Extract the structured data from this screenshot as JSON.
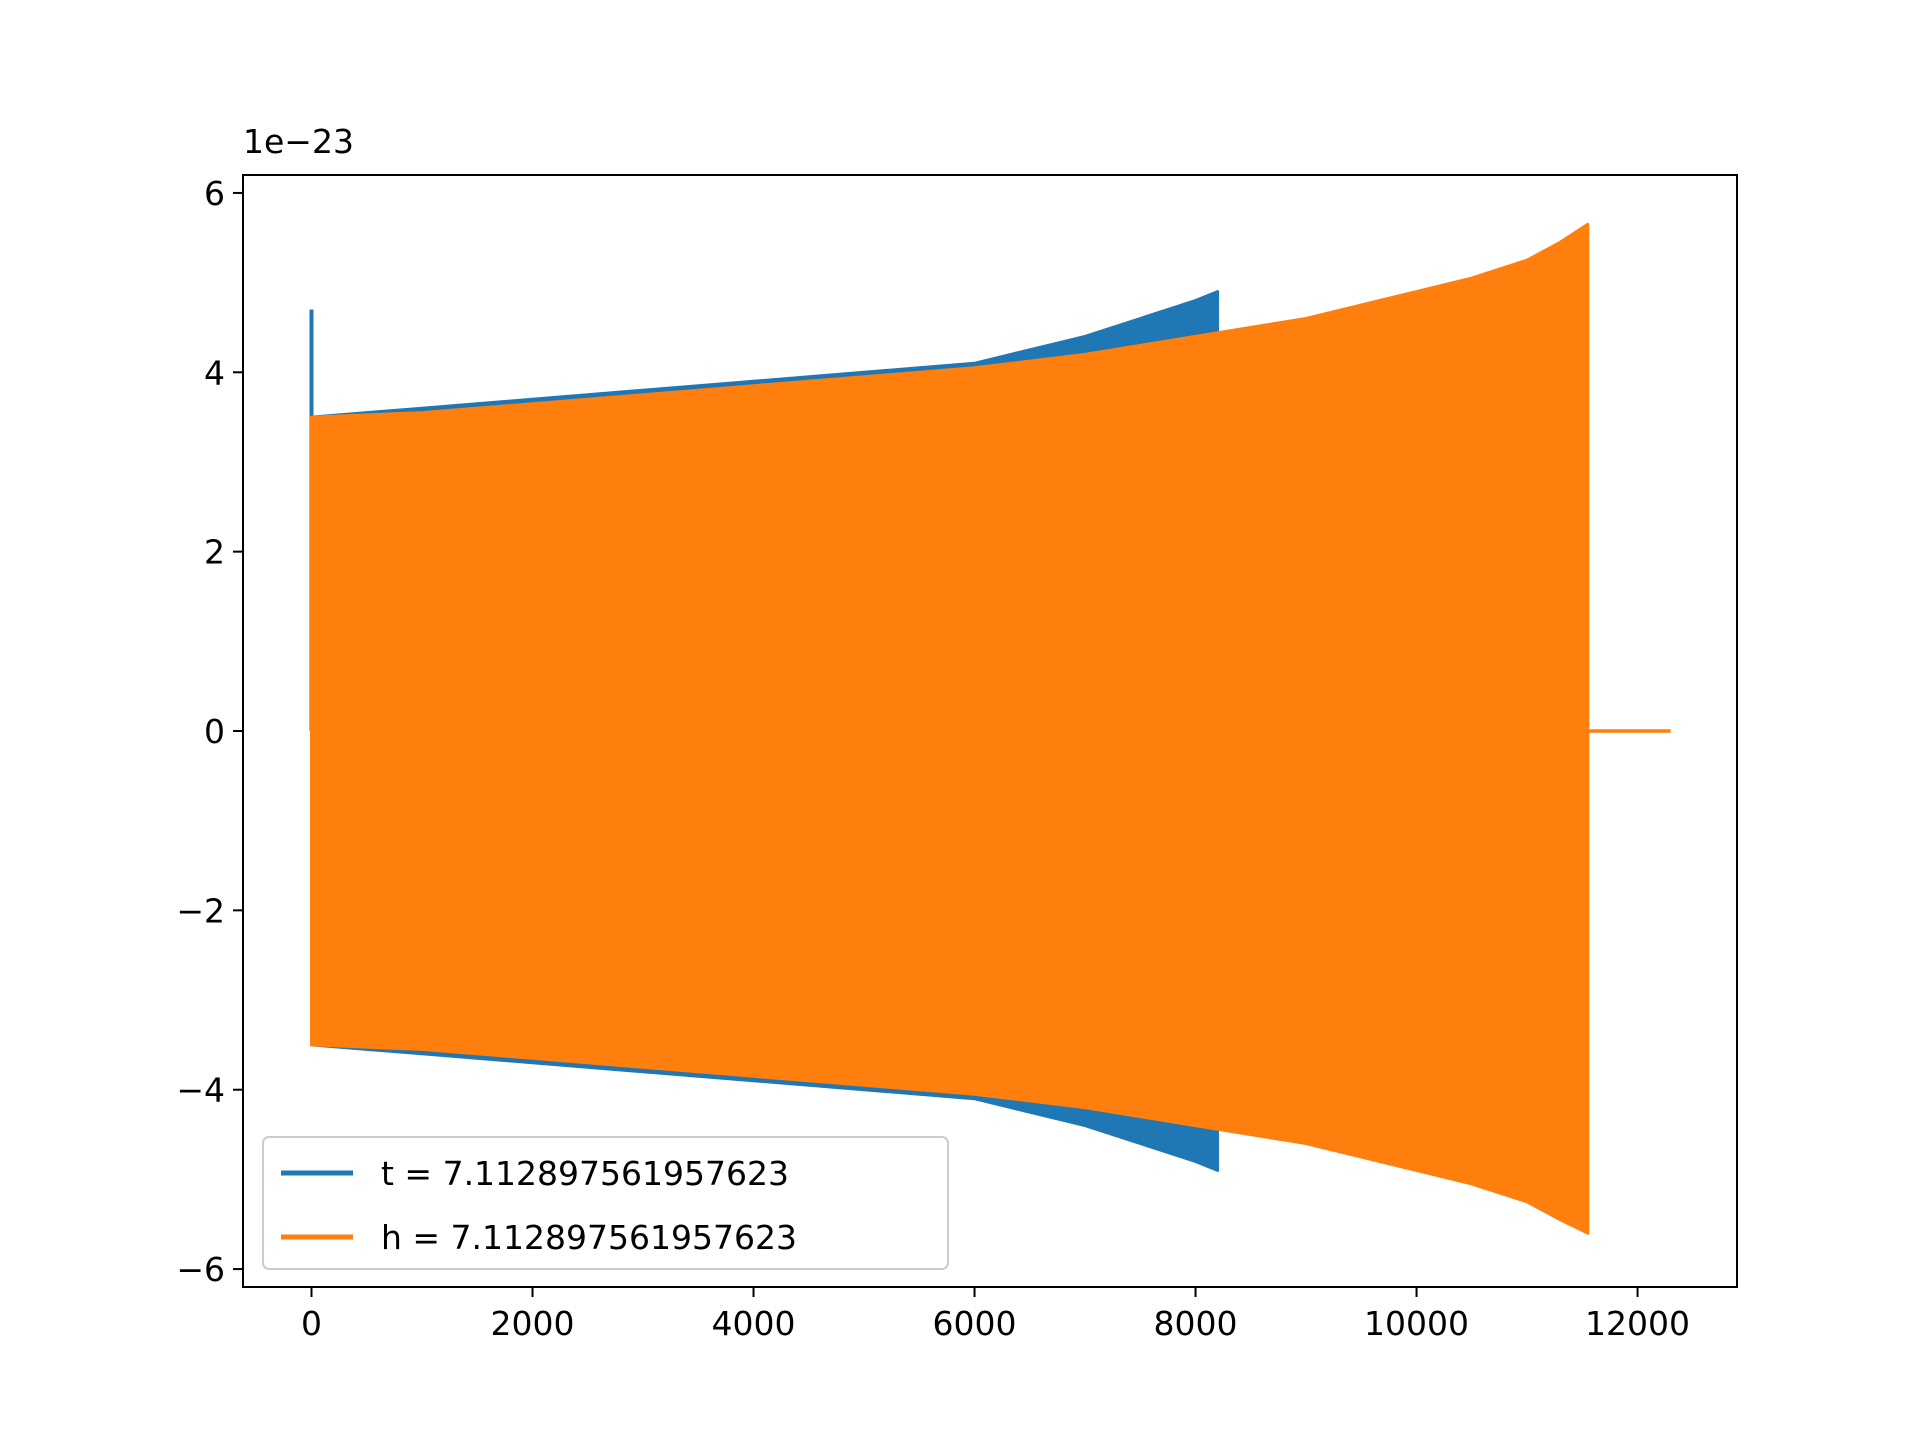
{
  "chart_data": {
    "type": "line",
    "title": "",
    "xlabel": "",
    "ylabel": "",
    "offset_label": "1e−23",
    "xlim": [
      -620,
      12900
    ],
    "ylim": [
      -6.2,
      6.2
    ],
    "x_ticks": [
      0,
      2000,
      4000,
      6000,
      8000,
      10000,
      12000
    ],
    "x_tick_labels": [
      "0",
      "2000",
      "4000",
      "6000",
      "8000",
      "10000",
      "12000"
    ],
    "y_ticks": [
      -6,
      -4,
      -2,
      0,
      2,
      4,
      6
    ],
    "y_tick_labels": [
      "−6",
      "−4",
      "−2",
      "0",
      "2",
      "4",
      "6"
    ],
    "grid": false,
    "legend_position": "lower-left",
    "series": [
      {
        "name": "t = 7.112897561957623",
        "color": "#1f77b4",
        "note_shape": "oscillating-envelope",
        "x": [
          0,
          1000,
          2000,
          3000,
          4000,
          5000,
          6000,
          7000,
          7500,
          8000,
          8200
        ],
        "upper": [
          3.5,
          3.6,
          3.7,
          3.8,
          3.9,
          4.0,
          4.1,
          4.4,
          4.6,
          4.8,
          4.9
        ],
        "lower": [
          -3.5,
          -3.6,
          -3.7,
          -3.8,
          -3.9,
          -4.0,
          -4.1,
          -4.4,
          -4.6,
          -4.8,
          -4.9
        ],
        "initial_spike": {
          "x": 0,
          "y": 4.7
        }
      },
      {
        "name": "h = 7.112897561957623",
        "color": "#ff7f0e",
        "note_shape": "oscillating-envelope",
        "x": [
          0,
          1000,
          2000,
          3000,
          4000,
          5000,
          6000,
          7000,
          8000,
          9000,
          10000,
          10500,
          11000,
          11300,
          11550
        ],
        "upper": [
          3.5,
          3.55,
          3.65,
          3.75,
          3.85,
          3.95,
          4.05,
          4.2,
          4.4,
          4.6,
          4.9,
          5.05,
          5.25,
          5.45,
          5.65
        ],
        "lower": [
          -3.5,
          -3.55,
          -3.65,
          -3.75,
          -3.85,
          -3.95,
          -4.05,
          -4.2,
          -4.4,
          -4.6,
          -4.9,
          -5.05,
          -5.25,
          -5.45,
          -5.6
        ],
        "tail": {
          "x": [
            11550,
            12300
          ],
          "y": [
            0,
            0
          ]
        }
      }
    ]
  }
}
